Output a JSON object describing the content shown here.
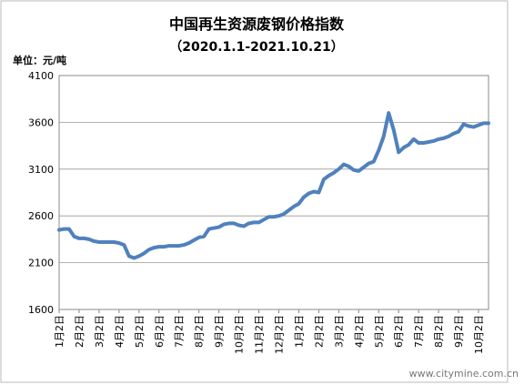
{
  "chart_data": {
    "type": "line",
    "title": "中国再生资源废钢价格指数",
    "subtitle": "（2020.1.1-2021.10.21）",
    "unit_label": "单位：元/吨",
    "watermark": "www.citymine.com.cn",
    "categories": [
      "1月2日",
      null,
      null,
      null,
      "2月2日",
      null,
      null,
      null,
      "3月2日",
      null,
      null,
      null,
      "4月2日",
      null,
      null,
      null,
      "5月2日",
      null,
      null,
      null,
      "6月2日",
      null,
      null,
      null,
      "7月2日",
      null,
      null,
      null,
      "8月2日",
      null,
      null,
      null,
      "9月2日",
      null,
      null,
      null,
      "10月2日",
      null,
      null,
      null,
      "11月2日",
      null,
      null,
      null,
      "12月2日",
      null,
      null,
      null,
      "1月2日",
      null,
      null,
      null,
      "2月2日",
      null,
      null,
      null,
      "3月2日",
      null,
      null,
      null,
      "4月2日",
      null,
      null,
      null,
      "5月2日",
      null,
      null,
      null,
      "6月2日",
      null,
      null,
      null,
      "7月2日",
      null,
      null,
      null,
      "8月2日",
      null,
      null,
      null,
      "9月2日",
      null,
      null,
      null,
      "10月2日",
      null,
      null
    ],
    "series": [
      {
        "color": "#4f81bd",
        "values": [
          2450,
          2460,
          2460,
          2380,
          2360,
          2360,
          2350,
          2330,
          2320,
          2320,
          2320,
          2320,
          2310,
          2290,
          2170,
          2150,
          2170,
          2200,
          2240,
          2260,
          2270,
          2270,
          2280,
          2280,
          2280,
          2290,
          2310,
          2340,
          2370,
          2380,
          2460,
          2470,
          2480,
          2510,
          2520,
          2520,
          2500,
          2490,
          2520,
          2530,
          2530,
          2560,
          2590,
          2590,
          2600,
          2620,
          2660,
          2700,
          2730,
          2800,
          2840,
          2860,
          2850,
          2990,
          3030,
          3060,
          3100,
          3150,
          3130,
          3090,
          3080,
          3120,
          3160,
          3180,
          3300,
          3450,
          3700,
          3520,
          3280,
          3330,
          3360,
          3420,
          3380,
          3380,
          3390,
          3400,
          3420,
          3430,
          3450,
          3480,
          3500,
          3580,
          3560,
          3550,
          3570,
          3590,
          3590
        ]
      }
    ],
    "ylim": [
      1600,
      4100
    ],
    "yticks": [
      1600,
      2100,
      2600,
      3100,
      3600,
      4100
    ],
    "grid": true
  }
}
